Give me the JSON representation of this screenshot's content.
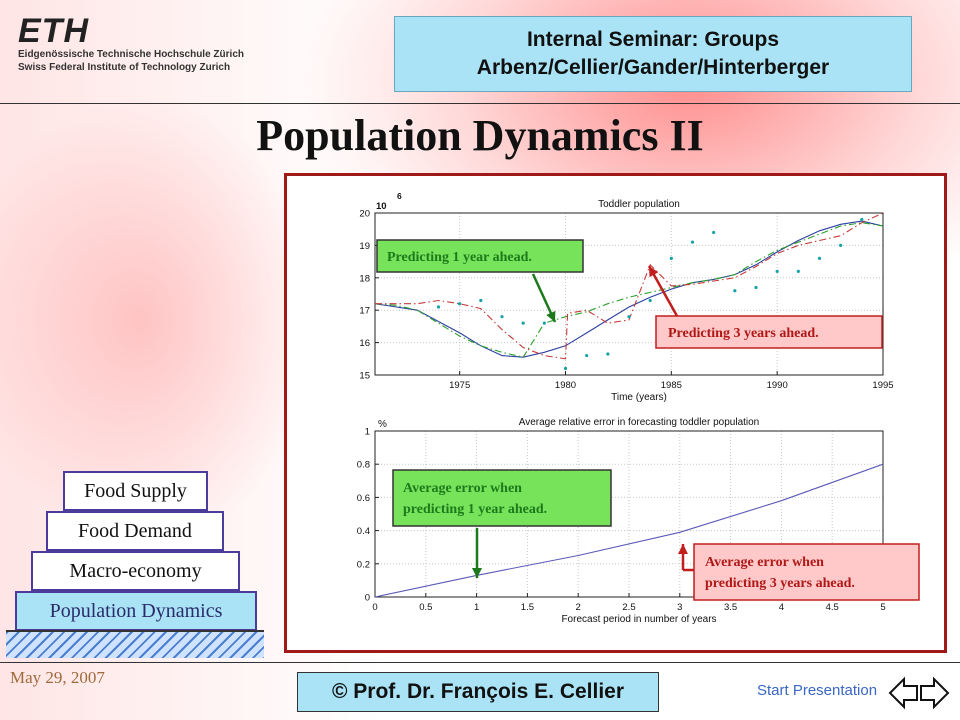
{
  "header": {
    "logo_word": "ETH",
    "logo_line1": "Eidgenössische Technische Hochschule Zürich",
    "logo_line2": "Swiss Federal Institute of Technology Zurich",
    "seminar_line1": "Internal Seminar: Groups",
    "seminar_line2": "Arbenz/Cellier/Gander/Hinterberger"
  },
  "page_title": "Population Dynamics II",
  "stack": {
    "items": [
      "Food Supply",
      "Food Demand",
      "Macro-economy",
      "Population Dynamics"
    ]
  },
  "footer": {
    "date": "May 29, 2007",
    "copyright": "© Prof. Dr. François E. Cellier",
    "start_link": "Start Presentation"
  },
  "colors": {
    "frame": "#a01919",
    "seminar_box": "#a9e3f5",
    "green_annotation": "#77e35a",
    "red_annotation": "#ffc9c9",
    "actual": "#2c3fa0",
    "pred1": "#2aa02a",
    "pred3": "#c83a3a",
    "measured": "#16a3a8"
  },
  "annotations": {
    "pred1_top": "Predicting 1 year ahead.",
    "pred3_top": "Predicting 3 years ahead.",
    "err1_line1": "Average error when",
    "err1_line2": "predicting 1 year ahead.",
    "err3_line1": "Average error when",
    "err3_line2": "predicting 3 years ahead."
  },
  "chart_data": [
    {
      "type": "line",
      "title": "Toddler population",
      "xlabel": "Time (years)",
      "ylabel": "",
      "y_exponent_base": "10",
      "y_exponent": "6",
      "xlim": [
        1971,
        1995
      ],
      "ylim": [
        15,
        20
      ],
      "xticks": [
        1975,
        1980,
        1985,
        1990,
        1995
      ],
      "yticks": [
        15,
        16,
        17,
        18,
        19,
        20
      ],
      "grid": true,
      "series": [
        {
          "key": "actual",
          "style": "solid",
          "x": [
            1971,
            1973,
            1975,
            1976,
            1977,
            1978,
            1979,
            1980,
            1981,
            1982,
            1983,
            1984,
            1985,
            1986,
            1987,
            1988,
            1989,
            1990,
            1991,
            1992,
            1993,
            1994,
            1995
          ],
          "y": [
            17.2,
            17.0,
            16.3,
            15.9,
            15.6,
            15.55,
            15.7,
            15.9,
            16.3,
            16.7,
            17.1,
            17.4,
            17.65,
            17.85,
            17.95,
            18.1,
            18.4,
            18.8,
            19.15,
            19.45,
            19.65,
            19.75,
            19.6
          ]
        },
        {
          "key": "pred1",
          "style": "dash-dot",
          "x": [
            1971,
            1972,
            1973,
            1974,
            1975,
            1976,
            1977,
            1978,
            1979,
            1980,
            1981,
            1982,
            1983,
            1984,
            1985,
            1986,
            1987,
            1988,
            1989,
            1990,
            1991,
            1992,
            1993,
            1994,
            1995
          ],
          "y": [
            17.2,
            17.15,
            17.0,
            16.6,
            16.2,
            15.9,
            15.7,
            15.55,
            16.6,
            16.8,
            16.95,
            17.2,
            17.4,
            17.55,
            17.7,
            17.85,
            17.95,
            18.1,
            18.5,
            18.85,
            19.1,
            19.35,
            19.6,
            19.7,
            19.6
          ]
        },
        {
          "key": "pred3",
          "style": "dash-dot",
          "x": [
            1971,
            1973,
            1974,
            1975,
            1976,
            1977,
            1978,
            1979,
            1980,
            1980.1,
            1981,
            1982,
            1983,
            1984,
            1985,
            1986,
            1987,
            1988,
            1989,
            1990,
            1991,
            1992,
            1993,
            1994,
            1995
          ],
          "y": [
            17.2,
            17.2,
            17.3,
            17.2,
            17.05,
            16.4,
            15.85,
            15.6,
            15.5,
            16.9,
            17.0,
            16.6,
            16.7,
            18.4,
            17.75,
            17.8,
            17.9,
            18.0,
            18.35,
            18.75,
            19.0,
            19.15,
            19.3,
            19.7,
            20.0
          ]
        },
        {
          "key": "measured",
          "style": "dots",
          "x": [
            1974,
            1975,
            1976,
            1977,
            1978,
            1979,
            1980,
            1981,
            1982,
            1983,
            1984,
            1985,
            1986,
            1987,
            1988,
            1989,
            1990,
            1991,
            1992,
            1993,
            1994
          ],
          "y": [
            17.1,
            17.2,
            17.3,
            16.8,
            16.6,
            16.6,
            15.2,
            15.6,
            15.65,
            16.8,
            17.3,
            18.6,
            19.1,
            19.4,
            17.6,
            17.7,
            18.2,
            18.2,
            18.6,
            19.0,
            19.8
          ]
        }
      ]
    },
    {
      "type": "line",
      "title": "Average relative error in forecasting toddler population",
      "xlabel": "Forecast period in number of years",
      "ylabel": "%",
      "xlim": [
        0,
        5
      ],
      "ylim": [
        0,
        1
      ],
      "xticks": [
        0,
        0.5,
        1,
        1.5,
        2,
        2.5,
        3,
        3.5,
        4,
        4.5,
        5
      ],
      "yticks": [
        0,
        0.2,
        0.4,
        0.6,
        0.8,
        1
      ],
      "grid": true,
      "series": [
        {
          "key": "error",
          "style": "solid",
          "x": [
            0,
            1,
            2,
            3,
            4,
            5
          ],
          "y": [
            0,
            0.13,
            0.25,
            0.39,
            0.58,
            0.8
          ]
        }
      ]
    }
  ]
}
